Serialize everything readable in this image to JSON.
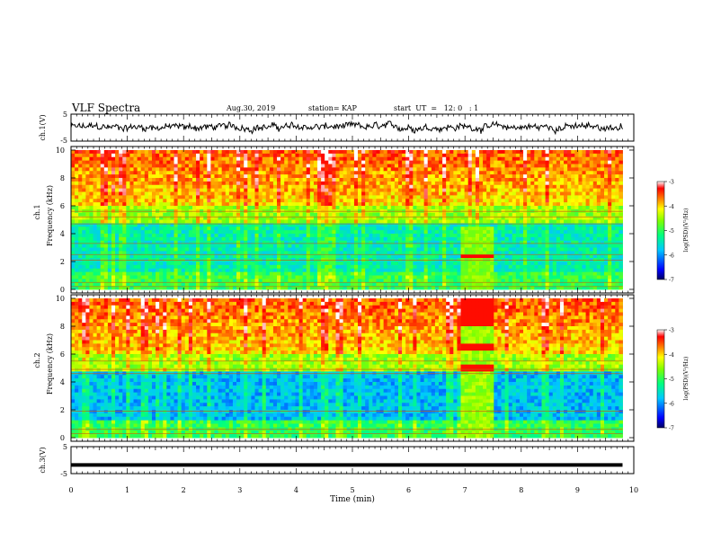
{
  "header": {
    "title": "VLF Spectra",
    "date": "Aug.30, 2019",
    "station": "station= KAP",
    "start": "start  UT  =   12: 0   : 1"
  },
  "chart_data": [
    {
      "type": "line",
      "name_label": "ch.1(V)",
      "ylabel": "ch.1(V)",
      "ylim": [
        -5,
        5
      ],
      "yticks": [
        "5",
        "-5"
      ],
      "xlim": [
        0,
        10
      ],
      "description_values": {
        "mean_approx": 0.2,
        "amplitude_approx": 1.5
      }
    },
    {
      "type": "heatmap",
      "ylabel": "ch.1 Frequency (kHz)",
      "ylabel_line1": "ch.1",
      "ylabel_line2": "Frequency (kHz)",
      "ylim": [
        0,
        10
      ],
      "yticks": [
        "0",
        "2",
        "4",
        "6",
        "8",
        "10"
      ],
      "xlim": [
        0,
        10
      ],
      "colorbar": {
        "label": "log(PSD)(V²/Hz)",
        "range": [
          -7,
          -3
        ],
        "ticks": [
          "-3",
          "-4",
          "-5",
          "-6",
          "-7"
        ]
      }
    },
    {
      "type": "heatmap",
      "ylabel": "ch.2 Frequency (kHz)",
      "ylabel_line1": "ch.2",
      "ylabel_line2": "Frequency (kHz)",
      "ylim": [
        0,
        10
      ],
      "yticks": [
        "0",
        "2",
        "4",
        "6",
        "8",
        "10"
      ],
      "xlim": [
        0,
        10
      ],
      "colorbar": {
        "label": "log(PSD)(V²/Hz)",
        "range": [
          -7,
          -3
        ],
        "ticks": [
          "-3",
          "-4",
          "-5",
          "-6",
          "-7"
        ]
      }
    },
    {
      "type": "line",
      "ylabel": "ch.3(V)",
      "ylim": [
        -5,
        5
      ],
      "yticks": [
        "5",
        "-5"
      ],
      "xlim": [
        0,
        10
      ],
      "x": [
        0,
        9.8
      ],
      "y": [
        -1.8,
        -1.8
      ]
    }
  ],
  "xaxis": {
    "label": "Time  (min)",
    "ticks": [
      "0",
      "1",
      "2",
      "3",
      "4",
      "5",
      "6",
      "7",
      "8",
      "9",
      "10"
    ]
  },
  "colors": {
    "colormap": [
      "#000080",
      "#0000ff",
      "#00c8ff",
      "#00ff80",
      "#80ff00",
      "#ffff00",
      "#ff8000",
      "#ff0000",
      "#ffffff"
    ]
  }
}
